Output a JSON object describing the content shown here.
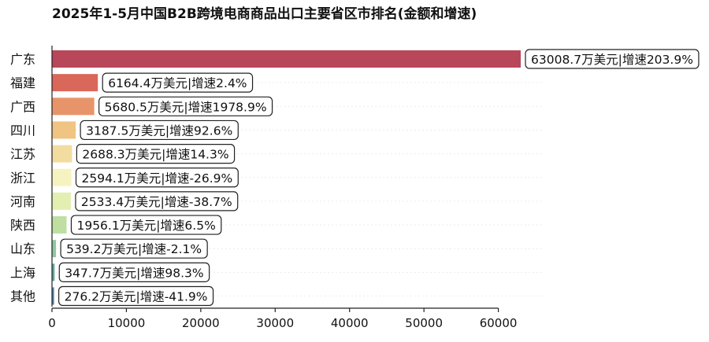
{
  "chart_data": {
    "type": "bar",
    "orientation": "horizontal",
    "title": "2025年1-5月中国B2B跨境电商商品出口主要省区市排名(金额和增速)",
    "xlabel": "",
    "ylabel": "",
    "xlim": [
      0,
      65000
    ],
    "xticks": [
      "0",
      "10000",
      "20000",
      "30000",
      "40000",
      "50000",
      "60000"
    ],
    "xtick_values": [
      0,
      10000,
      20000,
      30000,
      40000,
      50000,
      60000
    ],
    "grid": "horizontal dotted",
    "categories": [
      "广东",
      "福建",
      "广西",
      "四川",
      "江苏",
      "浙江",
      "河南",
      "陕西",
      "山东",
      "上海",
      "其他"
    ],
    "values": [
      63008.7,
      6164.4,
      5680.5,
      3187.5,
      2688.3,
      2594.1,
      2533.4,
      1956.1,
      539.2,
      347.7,
      276.2
    ],
    "growth": [
      "203.9%",
      "2.4%",
      "1978.9%",
      "92.6%",
      "14.3%",
      "-26.9%",
      "-38.7%",
      "6.5%",
      "-2.1%",
      "98.3%",
      "-41.9%"
    ],
    "labels": [
      "63008.7万美元|增速203.9%",
      "6164.4万美元|增速2.4%",
      "5680.5万美元|增速1978.9%",
      "3187.5万美元|增速92.6%",
      "2688.3万美元|增速14.3%",
      "2594.1万美元|增速-26.9%",
      "2533.4万美元|增速-38.7%",
      "1956.1万美元|增速6.5%",
      "539.2万美元|增速-2.1%",
      "347.7万美元|增速98.3%",
      "276.2万美元|增速-41.9%"
    ],
    "colors": [
      "#b8475a",
      "#d9685a",
      "#e8946a",
      "#f0c483",
      "#f3dca0",
      "#f6f3c0",
      "#e3efb0",
      "#bedea2",
      "#8fc7a2",
      "#5fa5a3",
      "#4f7fa6"
    ]
  }
}
